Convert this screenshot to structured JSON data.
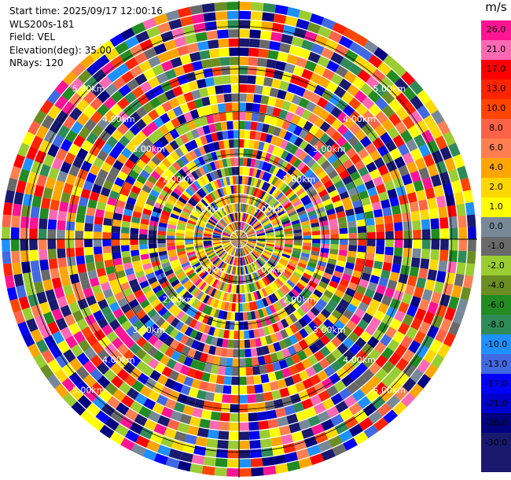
{
  "header": {
    "start_time": "Start time: 2025/09/17 12:00:16",
    "instrument": "WLS200s-181",
    "field": "Field: VEL",
    "elevation": "Elevation(deg): 35.00",
    "nrays": "NRays: 120"
  },
  "ppi": {
    "nrays": 120,
    "ring_labels": [
      "1.00km",
      "2.00km",
      "3.00km",
      "4.00km",
      "5.00km"
    ]
  },
  "colorbar": {
    "unit": "m/s",
    "colors": [
      "#ff1493",
      "#ff69b4",
      "#ff0000",
      "#ff2400",
      "#ff4500",
      "#ff6347",
      "#ff7f50",
      "#ffa500",
      "#ffd700",
      "#ffff00",
      "#778899",
      "#696969",
      "#9acd32",
      "#6b8e23",
      "#228b22",
      "#2e8b57",
      "#1e90ff",
      "#4169e1",
      "#0000ff",
      "#0000cd",
      "#000080",
      "#191970",
      "#191970"
    ],
    "ticks": [
      "26.0",
      "21.0",
      "17.0",
      "13.0",
      "10.0",
      "8.0",
      "6.0",
      "4.0",
      "2.0",
      "1.0",
      "0.0",
      "-1.0",
      "-2.0",
      "-4.0",
      "-6.0",
      "-8.0",
      "-10.0",
      "-13.0",
      "-17.0",
      "-21.0",
      "-26.0",
      "-30.0"
    ]
  }
}
